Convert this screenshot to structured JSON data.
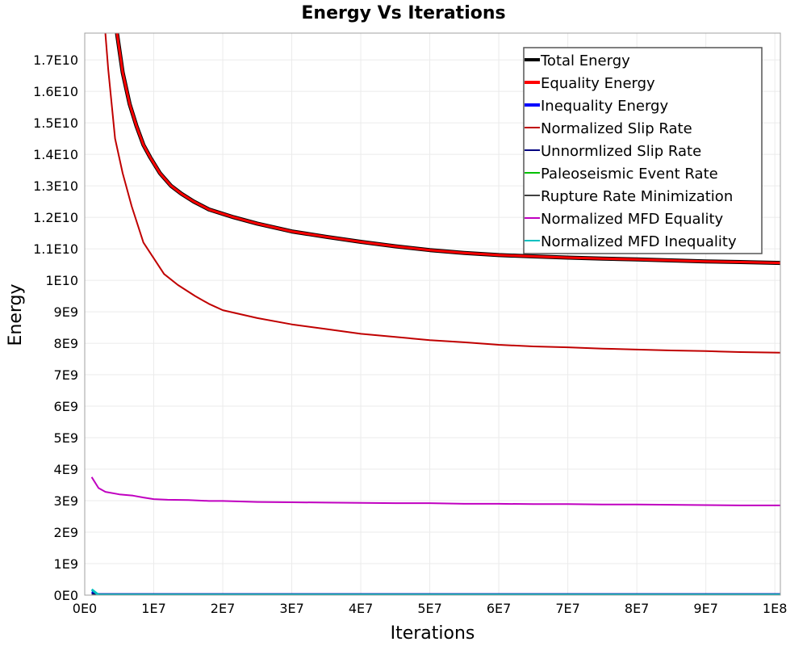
{
  "chart_data": {
    "type": "line",
    "title": "Energy Vs Iterations",
    "xlabel": "Iterations",
    "ylabel": "Energy",
    "xlim": [
      0,
      100800000
    ],
    "ylim": [
      0,
      17850000000
    ],
    "grid": true,
    "legend_position": "top-right",
    "x_ticks": [
      0,
      10000000,
      20000000,
      30000000,
      40000000,
      50000000,
      60000000,
      70000000,
      80000000,
      90000000,
      100000000
    ],
    "x_tick_labels": [
      "0E0",
      "1E7",
      "2E7",
      "3E7",
      "4E7",
      "5E7",
      "6E7",
      "7E7",
      "8E7",
      "9E7",
      "1E8"
    ],
    "y_ticks": [
      0,
      1000000000,
      2000000000,
      3000000000,
      4000000000,
      5000000000,
      6000000000,
      7000000000,
      8000000000,
      9000000000,
      10000000000,
      11000000000,
      12000000000,
      13000000000,
      14000000000,
      15000000000,
      16000000000,
      17000000000
    ],
    "y_tick_labels": [
      "0E0",
      "1E9",
      "2E9",
      "3E9",
      "4E9",
      "5E9",
      "6E9",
      "7E9",
      "8E9",
      "9E9",
      "1E10",
      "1.1E10",
      "1.2E10",
      "1.3E10",
      "1.4E10",
      "1.5E10",
      "1.6E10",
      "1.7E10"
    ],
    "series": [
      {
        "name": "Total Energy",
        "color": "#000000",
        "width": 5,
        "x": [
          4000000,
          4700000,
          5500000,
          6500000,
          7500000,
          8500000,
          9500000,
          10900000,
          12500000,
          14000000,
          15800000,
          18000000,
          21600000,
          25000000,
          30000000,
          35000000,
          40000000,
          45000000,
          50000000,
          55000000,
          60000000,
          65000000,
          70000000,
          75000000,
          80000000,
          85000000,
          90000000,
          95000000,
          100800000
        ],
        "y": [
          19500000000,
          17800000000,
          16600000000,
          15600000000,
          14900000000,
          14300000000,
          13900000000,
          13400000000,
          13000000000,
          12750000000,
          12500000000,
          12250000000,
          12000000000,
          11800000000,
          11550000000,
          11380000000,
          11220000000,
          11080000000,
          10960000000,
          10870000000,
          10800000000,
          10760000000,
          10720000000,
          10690000000,
          10660000000,
          10630000000,
          10600000000,
          10580000000,
          10550000000
        ]
      },
      {
        "name": "Equality Energy",
        "color": "#ff0000",
        "width": 3,
        "x": [
          4000000,
          4700000,
          5500000,
          6500000,
          7500000,
          8500000,
          9500000,
          10900000,
          12500000,
          14000000,
          15800000,
          18000000,
          21600000,
          25000000,
          30000000,
          35000000,
          40000000,
          45000000,
          50000000,
          55000000,
          60000000,
          65000000,
          70000000,
          75000000,
          80000000,
          85000000,
          90000000,
          95000000,
          100800000
        ],
        "y": [
          19500000000,
          17800000000,
          16600000000,
          15600000000,
          14900000000,
          14300000000,
          13900000000,
          13400000000,
          13000000000,
          12750000000,
          12500000000,
          12250000000,
          12000000000,
          11800000000,
          11550000000,
          11380000000,
          11220000000,
          11080000000,
          10960000000,
          10870000000,
          10800000000,
          10760000000,
          10720000000,
          10690000000,
          10660000000,
          10630000000,
          10600000000,
          10580000000,
          10550000000
        ]
      },
      {
        "name": "Inequality Energy",
        "color": "#0000ff",
        "width": 3,
        "x": [
          1000000,
          2000000,
          100800000
        ],
        "y": [
          100000000,
          20000000,
          20000000
        ]
      },
      {
        "name": "Normalized Slip Rate",
        "color": "#c00000",
        "width": 2,
        "x": [
          2700000,
          3000000,
          3400000,
          4400000,
          5500000,
          6800000,
          8500000,
          10000000,
          11500000,
          13500000,
          16000000,
          18000000,
          20000000,
          25000000,
          30000000,
          35000000,
          40000000,
          45000000,
          50000000,
          55000000,
          60000000,
          65000000,
          70000000,
          75000000,
          80000000,
          85000000,
          90000000,
          95000000,
          100800000
        ],
        "y": [
          19500000000,
          17800000000,
          16700000000,
          14500000000,
          13400000000,
          12350000000,
          11200000000,
          10700000000,
          10200000000,
          9850000000,
          9500000000,
          9250000000,
          9050000000,
          8800000000,
          8600000000,
          8450000000,
          8300000000,
          8200000000,
          8100000000,
          8030000000,
          7950000000,
          7900000000,
          7870000000,
          7830000000,
          7800000000,
          7770000000,
          7750000000,
          7720000000,
          7700000000
        ]
      },
      {
        "name": "Unnormlized Slip Rate",
        "color": "#000080",
        "width": 2,
        "x": [
          1000000,
          2000000,
          100800000
        ],
        "y": [
          60000000,
          30000000,
          30000000
        ]
      },
      {
        "name": "Paleoseismic Event Rate",
        "color": "#00c000",
        "width": 2,
        "x": [
          1000000,
          100800000
        ],
        "y": [
          0,
          0
        ]
      },
      {
        "name": "Rupture Rate Minimization",
        "color": "#404040",
        "width": 2,
        "x": [
          1000000,
          100800000
        ],
        "y": [
          0,
          0
        ]
      },
      {
        "name": "Normalized MFD Equality",
        "color": "#c000c0",
        "width": 2,
        "x": [
          1000000,
          2000000,
          3000000,
          5000000,
          7000000,
          8500000,
          10000000,
          12000000,
          15000000,
          18000000,
          20000000,
          25000000,
          30000000,
          35000000,
          40000000,
          45000000,
          50000000,
          55000000,
          60000000,
          65000000,
          70000000,
          75000000,
          80000000,
          85000000,
          90000000,
          95000000,
          100800000
        ],
        "y": [
          3750000000,
          3400000000,
          3280000000,
          3200000000,
          3160000000,
          3100000000,
          3050000000,
          3030000000,
          3020000000,
          2990000000,
          2990000000,
          2960000000,
          2950000000,
          2940000000,
          2930000000,
          2920000000,
          2920000000,
          2900000000,
          2900000000,
          2890000000,
          2890000000,
          2880000000,
          2880000000,
          2870000000,
          2860000000,
          2850000000,
          2850000000
        ]
      },
      {
        "name": "Normalized MFD Inequality",
        "color": "#00c0c0",
        "width": 3,
        "x": [
          1000000,
          2000000,
          100800000
        ],
        "y": [
          180000000,
          5000000,
          5000000
        ]
      }
    ]
  }
}
